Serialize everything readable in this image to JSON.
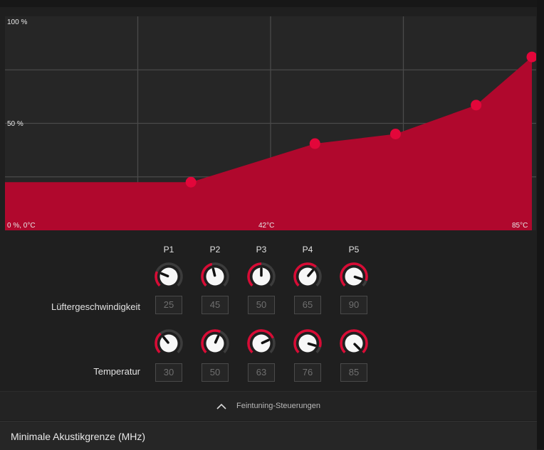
{
  "chart": {
    "y_top_label": "100 %",
    "y_mid_label": "50 %",
    "origin_label": "0 %, 0°C",
    "x_mid_label": "42°C",
    "x_max_label": "85°C",
    "fill_color": "#b0082d",
    "point_color": "#e3063a"
  },
  "chart_data": {
    "type": "area",
    "x": [
      0,
      30,
      50,
      63,
      76,
      85
    ],
    "values": [
      25,
      25,
      45,
      50,
      65,
      90
    ],
    "points": [
      {
        "name": "P1",
        "temp": 30,
        "speed": 25
      },
      {
        "name": "P2",
        "temp": 50,
        "speed": 45
      },
      {
        "name": "P3",
        "temp": 63,
        "speed": 50
      },
      {
        "name": "P4",
        "temp": 76,
        "speed": 65
      },
      {
        "name": "P5",
        "temp": 85,
        "speed": 90
      }
    ],
    "xlim": [
      0,
      85
    ],
    "ylim": [
      0,
      100
    ],
    "grid": true
  },
  "controls": {
    "columns": [
      "P1",
      "P2",
      "P3",
      "P4",
      "P5"
    ],
    "speed_label": "Lüftergeschwindigkeit",
    "temp_label": "Temperatur",
    "speed_values": [
      "25",
      "45",
      "50",
      "65",
      "90"
    ],
    "temp_values": [
      "30",
      "50",
      "63",
      "76",
      "85"
    ]
  },
  "fine_tuning": {
    "label": "Feintuning-Steuerungen"
  },
  "bottom": {
    "label": "Minimale Akustikgrenze (MHz)"
  }
}
